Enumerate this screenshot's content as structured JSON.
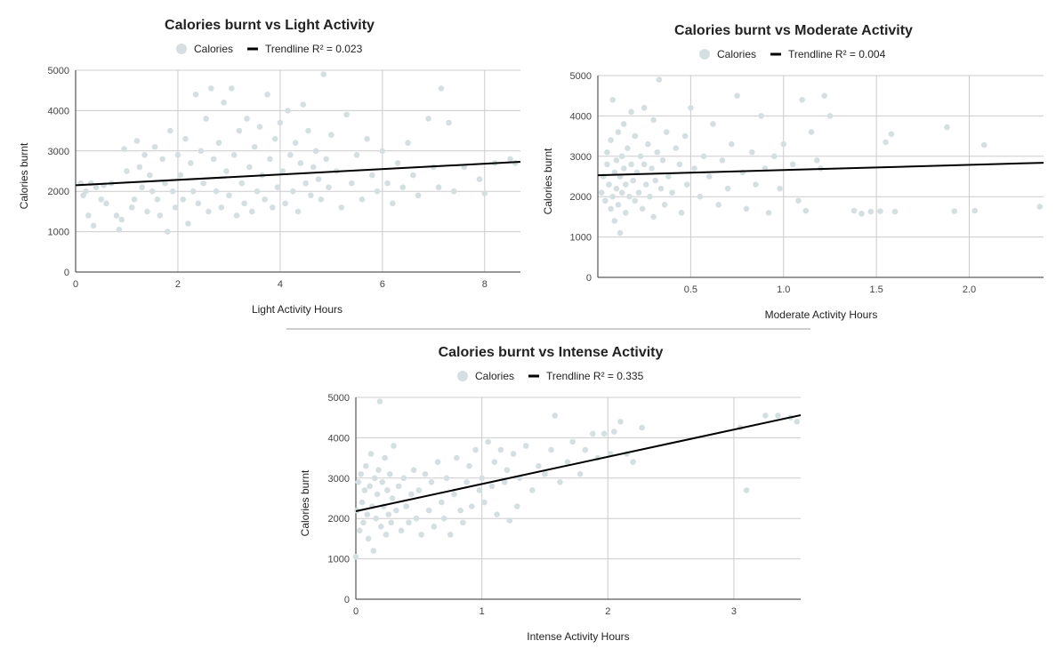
{
  "colors": {
    "points": "#d5dfe1",
    "trendline": "#000000",
    "grid": "#cccccc",
    "axis": "#333333",
    "divider": "#9e9e9e"
  },
  "legend": {
    "series_label": "Calories"
  },
  "chart_data": [
    {
      "type": "scatter",
      "title": "Calories burnt vs Light Activity",
      "xlabel": "Light Activity Hours",
      "ylabel": "Calories burnt",
      "xlim": [
        0,
        8.7
      ],
      "ylim": [
        0,
        5000
      ],
      "xticks": [
        0,
        2,
        4,
        6,
        8
      ],
      "xtick_labels": [
        "0",
        "2",
        "4",
        "6",
        "8"
      ],
      "yticks": [
        0,
        1000,
        2000,
        3000,
        4000,
        5000
      ],
      "ytick_labels": [
        "0",
        "1000",
        "2000",
        "3000",
        "4000",
        "5000"
      ],
      "series": [
        {
          "name": "Calories"
        }
      ],
      "trendline": {
        "label": "Trendline R² = 0.023",
        "r2": 0.023,
        "y_at_xmin": 2150,
        "y_at_xmax": 2730
      },
      "points": [
        [
          0.1,
          2200
        ],
        [
          0.15,
          1900
        ],
        [
          0.2,
          2000
        ],
        [
          0.25,
          1400
        ],
        [
          0.3,
          2200
        ],
        [
          0.35,
          1150
        ],
        [
          0.4,
          2100
        ],
        [
          0.5,
          1800
        ],
        [
          0.55,
          2150
        ],
        [
          0.6,
          1700
        ],
        [
          0.7,
          2200
        ],
        [
          0.8,
          1400
        ],
        [
          0.85,
          1050
        ],
        [
          0.9,
          1300
        ],
        [
          0.95,
          3050
        ],
        [
          1.0,
          2500
        ],
        [
          1.1,
          1600
        ],
        [
          1.15,
          1800
        ],
        [
          1.2,
          3250
        ],
        [
          1.25,
          2600
        ],
        [
          1.3,
          2100
        ],
        [
          1.35,
          2900
        ],
        [
          1.4,
          1500
        ],
        [
          1.45,
          2400
        ],
        [
          1.5,
          2000
        ],
        [
          1.55,
          3100
        ],
        [
          1.6,
          1800
        ],
        [
          1.65,
          1400
        ],
        [
          1.7,
          2800
        ],
        [
          1.75,
          2200
        ],
        [
          1.8,
          1000
        ],
        [
          1.85,
          3500
        ],
        [
          1.9,
          2000
        ],
        [
          1.95,
          1600
        ],
        [
          2.0,
          2900
        ],
        [
          2.05,
          2400
        ],
        [
          2.1,
          1800
        ],
        [
          2.15,
          3300
        ],
        [
          2.2,
          1200
        ],
        [
          2.25,
          2700
        ],
        [
          2.3,
          2000
        ],
        [
          2.35,
          4400
        ],
        [
          2.4,
          1700
        ],
        [
          2.45,
          3000
        ],
        [
          2.5,
          2200
        ],
        [
          2.55,
          3800
        ],
        [
          2.6,
          1500
        ],
        [
          2.65,
          4550
        ],
        [
          2.7,
          2800
        ],
        [
          2.75,
          2000
        ],
        [
          2.8,
          3200
        ],
        [
          2.85,
          1600
        ],
        [
          2.9,
          4200
        ],
        [
          2.95,
          2500
        ],
        [
          3.0,
          1900
        ],
        [
          3.05,
          4550
        ],
        [
          3.1,
          2900
        ],
        [
          3.15,
          1400
        ],
        [
          3.2,
          3500
        ],
        [
          3.25,
          2200
        ],
        [
          3.3,
          1700
        ],
        [
          3.35,
          3800
        ],
        [
          3.4,
          2600
        ],
        [
          3.45,
          1500
        ],
        [
          3.5,
          3100
        ],
        [
          3.55,
          2000
        ],
        [
          3.6,
          3600
        ],
        [
          3.65,
          2400
        ],
        [
          3.7,
          1800
        ],
        [
          3.75,
          4400
        ],
        [
          3.8,
          2800
        ],
        [
          3.85,
          1600
        ],
        [
          3.9,
          3300
        ],
        [
          3.95,
          2100
        ],
        [
          4.0,
          3700
        ],
        [
          4.05,
          2500
        ],
        [
          4.1,
          1700
        ],
        [
          4.15,
          4000
        ],
        [
          4.2,
          2900
        ],
        [
          4.25,
          2000
        ],
        [
          4.3,
          3200
        ],
        [
          4.35,
          1500
        ],
        [
          4.4,
          2700
        ],
        [
          4.45,
          4150
        ],
        [
          4.5,
          2200
        ],
        [
          4.55,
          3500
        ],
        [
          4.6,
          1900
        ],
        [
          4.65,
          2600
        ],
        [
          4.7,
          3000
        ],
        [
          4.75,
          2300
        ],
        [
          4.8,
          1800
        ],
        [
          4.85,
          4900
        ],
        [
          4.9,
          2800
        ],
        [
          4.95,
          2100
        ],
        [
          5.0,
          3400
        ],
        [
          5.1,
          2500
        ],
        [
          5.2,
          1600
        ],
        [
          5.3,
          3900
        ],
        [
          5.4,
          2200
        ],
        [
          5.5,
          2900
        ],
        [
          5.6,
          1800
        ],
        [
          5.7,
          3300
        ],
        [
          5.8,
          2400
        ],
        [
          5.9,
          2000
        ],
        [
          6.0,
          3000
        ],
        [
          6.1,
          2200
        ],
        [
          6.2,
          1700
        ],
        [
          6.3,
          2700
        ],
        [
          6.4,
          2100
        ],
        [
          6.5,
          3200
        ],
        [
          6.6,
          2400
        ],
        [
          6.7,
          1900
        ],
        [
          6.9,
          3800
        ],
        [
          7.0,
          2600
        ],
        [
          7.1,
          2100
        ],
        [
          7.15,
          4550
        ],
        [
          7.3,
          3700
        ],
        [
          7.4,
          2000
        ],
        [
          7.6,
          2600
        ],
        [
          7.9,
          2300
        ],
        [
          8.0,
          1950
        ],
        [
          8.2,
          2700
        ],
        [
          8.5,
          2800
        ],
        [
          8.6,
          2700
        ]
      ]
    },
    {
      "type": "scatter",
      "title": "Calories burnt vs Moderate Activity",
      "xlabel": "Moderate Activity Hours",
      "ylabel": "Calories burnt",
      "xlim": [
        0,
        2.4
      ],
      "ylim": [
        0,
        5000
      ],
      "xticks": [
        0.5,
        1.0,
        1.5,
        2.0
      ],
      "xtick_labels": [
        "0.5",
        "1.0",
        "1.5",
        "2.0"
      ],
      "yticks": [
        0,
        1000,
        2000,
        3000,
        4000,
        5000
      ],
      "ytick_labels": [
        "0",
        "1000",
        "2000",
        "3000",
        "4000",
        "5000"
      ],
      "series": [
        {
          "name": "Calories"
        }
      ],
      "trendline": {
        "label": "Trendline  R² = 0.004",
        "r2": 0.004,
        "y_at_xmin": 2530,
        "y_at_xmax": 2840
      },
      "points": [
        [
          0.02,
          2100
        ],
        [
          0.03,
          2500
        ],
        [
          0.04,
          1900
        ],
        [
          0.05,
          2800
        ],
        [
          0.05,
          3100
        ],
        [
          0.06,
          2300
        ],
        [
          0.07,
          1700
        ],
        [
          0.07,
          3400
        ],
        [
          0.08,
          2000
        ],
        [
          0.08,
          4400
        ],
        [
          0.09,
          2600
        ],
        [
          0.09,
          1400
        ],
        [
          0.1,
          2900
        ],
        [
          0.1,
          2200
        ],
        [
          0.11,
          3600
        ],
        [
          0.11,
          1800
        ],
        [
          0.12,
          2500
        ],
        [
          0.12,
          1100
        ],
        [
          0.13,
          3000
        ],
        [
          0.13,
          2100
        ],
        [
          0.14,
          2700
        ],
        [
          0.14,
          3800
        ],
        [
          0.15,
          2300
        ],
        [
          0.15,
          1600
        ],
        [
          0.16,
          3200
        ],
        [
          0.17,
          2000
        ],
        [
          0.18,
          2800
        ],
        [
          0.18,
          4100
        ],
        [
          0.19,
          2400
        ],
        [
          0.2,
          1900
        ],
        [
          0.2,
          3500
        ],
        [
          0.21,
          2600
        ],
        [
          0.22,
          2100
        ],
        [
          0.23,
          3000
        ],
        [
          0.24,
          1700
        ],
        [
          0.25,
          2800
        ],
        [
          0.25,
          4200
        ],
        [
          0.26,
          2300
        ],
        [
          0.27,
          3300
        ],
        [
          0.28,
          2000
        ],
        [
          0.29,
          2700
        ],
        [
          0.3,
          3900
        ],
        [
          0.3,
          1500
        ],
        [
          0.31,
          2400
        ],
        [
          0.32,
          3100
        ],
        [
          0.33,
          4900
        ],
        [
          0.34,
          2200
        ],
        [
          0.35,
          2900
        ],
        [
          0.36,
          1800
        ],
        [
          0.37,
          3600
        ],
        [
          0.38,
          2500
        ],
        [
          0.4,
          2100
        ],
        [
          0.42,
          3200
        ],
        [
          0.44,
          2800
        ],
        [
          0.45,
          1600
        ],
        [
          0.47,
          3500
        ],
        [
          0.48,
          2300
        ],
        [
          0.5,
          4200
        ],
        [
          0.52,
          2700
        ],
        [
          0.55,
          2000
        ],
        [
          0.57,
          3000
        ],
        [
          0.6,
          2500
        ],
        [
          0.62,
          3800
        ],
        [
          0.65,
          1800
        ],
        [
          0.67,
          2900
        ],
        [
          0.7,
          2200
        ],
        [
          0.72,
          3300
        ],
        [
          0.75,
          4500
        ],
        [
          0.78,
          2600
        ],
        [
          0.8,
          1700
        ],
        [
          0.83,
          3100
        ],
        [
          0.85,
          2300
        ],
        [
          0.88,
          4000
        ],
        [
          0.9,
          2700
        ],
        [
          0.92,
          1600
        ],
        [
          0.95,
          3000
        ],
        [
          0.98,
          2200
        ],
        [
          1.0,
          3300
        ],
        [
          1.05,
          2800
        ],
        [
          1.08,
          1900
        ],
        [
          1.1,
          4400
        ],
        [
          1.12,
          1650
        ],
        [
          1.15,
          3600
        ],
        [
          1.18,
          2900
        ],
        [
          1.2,
          2700
        ],
        [
          1.22,
          4500
        ],
        [
          1.25,
          4000
        ],
        [
          1.38,
          1650
        ],
        [
          1.42,
          1580
        ],
        [
          1.47,
          1630
        ],
        [
          1.52,
          1640
        ],
        [
          1.55,
          3350
        ],
        [
          1.58,
          3550
        ],
        [
          1.6,
          1630
        ],
        [
          1.88,
          3720
        ],
        [
          1.92,
          1640
        ],
        [
          2.03,
          1650
        ],
        [
          2.08,
          3280
        ],
        [
          2.38,
          1750
        ]
      ]
    },
    {
      "type": "scatter",
      "title": "Calories burnt vs Intense Activity",
      "xlabel": "Intense Activity Hours",
      "ylabel": "Calories burnt",
      "xlim": [
        0,
        3.53
      ],
      "ylim": [
        0,
        5000
      ],
      "xticks": [
        0,
        1,
        2,
        3
      ],
      "xtick_labels": [
        "0",
        "1",
        "2",
        "3"
      ],
      "yticks": [
        0,
        1000,
        2000,
        3000,
        4000,
        5000
      ],
      "ytick_labels": [
        "0",
        "1000",
        "2000",
        "3000",
        "4000",
        "5000"
      ],
      "series": [
        {
          "name": "Calories"
        }
      ],
      "trendline": {
        "label": "Trendline R² = 0.335",
        "r2": 0.335,
        "y_at_xmin": 2180,
        "y_at_xmax": 4560
      },
      "points": [
        [
          0.0,
          1050
        ],
        [
          0.01,
          2200
        ],
        [
          0.02,
          2900
        ],
        [
          0.03,
          1700
        ],
        [
          0.04,
          3100
        ],
        [
          0.05,
          2400
        ],
        [
          0.06,
          1900
        ],
        [
          0.07,
          2700
        ],
        [
          0.08,
          3300
        ],
        [
          0.09,
          2100
        ],
        [
          0.1,
          1500
        ],
        [
          0.11,
          2800
        ],
        [
          0.12,
          3600
        ],
        [
          0.13,
          2300
        ],
        [
          0.14,
          1200
        ],
        [
          0.15,
          3000
        ],
        [
          0.16,
          2000
        ],
        [
          0.17,
          2600
        ],
        [
          0.18,
          3200
        ],
        [
          0.19,
          4900
        ],
        [
          0.2,
          1800
        ],
        [
          0.21,
          2900
        ],
        [
          0.22,
          2300
        ],
        [
          0.23,
          3500
        ],
        [
          0.24,
          1600
        ],
        [
          0.25,
          2700
        ],
        [
          0.26,
          2100
        ],
        [
          0.27,
          3100
        ],
        [
          0.28,
          1900
        ],
        [
          0.29,
          2500
        ],
        [
          0.3,
          3800
        ],
        [
          0.32,
          2200
        ],
        [
          0.34,
          2800
        ],
        [
          0.36,
          1700
        ],
        [
          0.38,
          3000
        ],
        [
          0.4,
          2300
        ],
        [
          0.42,
          1900
        ],
        [
          0.44,
          2600
        ],
        [
          0.46,
          3200
        ],
        [
          0.48,
          2000
        ],
        [
          0.5,
          2700
        ],
        [
          0.52,
          1600
        ],
        [
          0.55,
          3100
        ],
        [
          0.58,
          2200
        ],
        [
          0.6,
          2900
        ],
        [
          0.62,
          1800
        ],
        [
          0.65,
          3400
        ],
        [
          0.68,
          2400
        ],
        [
          0.7,
          2000
        ],
        [
          0.72,
          3000
        ],
        [
          0.75,
          1600
        ],
        [
          0.78,
          2600
        ],
        [
          0.8,
          3500
        ],
        [
          0.83,
          2200
        ],
        [
          0.85,
          1900
        ],
        [
          0.88,
          2900
        ],
        [
          0.9,
          3300
        ],
        [
          0.92,
          2300
        ],
        [
          0.95,
          3700
        ],
        [
          0.98,
          2700
        ],
        [
          1.0,
          3000
        ],
        [
          1.02,
          2400
        ],
        [
          1.05,
          3900
        ],
        [
          1.08,
          2800
        ],
        [
          1.1,
          3400
        ],
        [
          1.12,
          2100
        ],
        [
          1.15,
          3700
        ],
        [
          1.18,
          2900
        ],
        [
          1.2,
          3200
        ],
        [
          1.22,
          1950
        ],
        [
          1.25,
          3600
        ],
        [
          1.28,
          2300
        ],
        [
          1.3,
          3000
        ],
        [
          1.35,
          3800
        ],
        [
          1.4,
          2700
        ],
        [
          1.45,
          3300
        ],
        [
          1.5,
          3100
        ],
        [
          1.55,
          3700
        ],
        [
          1.58,
          4550
        ],
        [
          1.62,
          2900
        ],
        [
          1.68,
          3400
        ],
        [
          1.72,
          3900
        ],
        [
          1.78,
          3100
        ],
        [
          1.82,
          3700
        ],
        [
          1.88,
          4100
        ],
        [
          1.92,
          3500
        ],
        [
          1.97,
          4100
        ],
        [
          2.02,
          3600
        ],
        [
          2.05,
          4150
        ],
        [
          2.1,
          4400
        ],
        [
          2.15,
          3600
        ],
        [
          2.2,
          3400
        ],
        [
          2.27,
          4250
        ],
        [
          3.05,
          4250
        ],
        [
          3.1,
          2700
        ],
        [
          3.25,
          4550
        ],
        [
          3.35,
          4550
        ],
        [
          3.45,
          4500
        ],
        [
          3.5,
          4400
        ]
      ]
    }
  ]
}
